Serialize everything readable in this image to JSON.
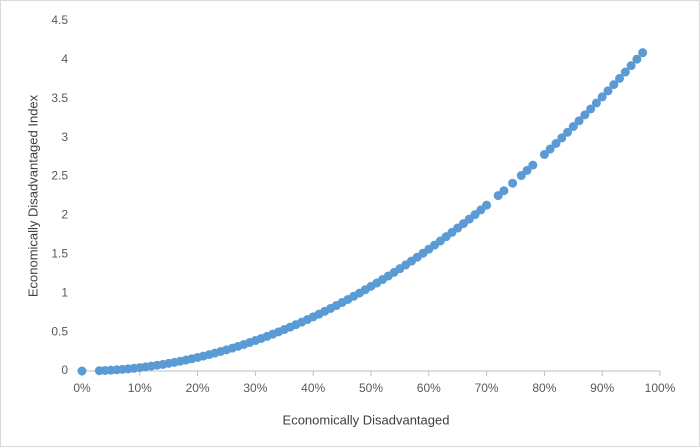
{
  "chart_data": {
    "type": "scatter",
    "xlabel": "Economically Disadvantaged",
    "ylabel": "Economically Disadvantaged Index",
    "color": "#5b9bd5",
    "x": [
      0,
      3,
      4,
      5,
      6,
      7,
      8,
      9,
      10,
      11,
      12,
      13,
      14,
      15,
      16,
      17,
      18,
      19,
      20,
      21,
      22,
      23,
      24,
      25,
      26,
      27,
      28,
      29,
      30,
      31,
      32,
      33,
      34,
      35,
      36,
      37,
      38,
      39,
      40,
      41,
      42,
      43,
      44,
      45,
      46,
      47,
      48,
      49,
      50,
      51,
      52,
      53,
      54,
      55,
      56,
      57,
      58,
      59,
      60,
      61,
      62,
      63,
      64,
      65,
      66,
      67,
      68,
      69,
      70,
      72,
      73,
      74.5,
      76,
      77,
      78,
      80,
      81,
      82,
      83,
      84,
      85,
      86,
      87,
      88,
      89,
      90,
      91,
      92,
      93,
      94,
      95,
      96,
      97
    ],
    "y": [
      0,
      0.004,
      0.007,
      0.011,
      0.016,
      0.021,
      0.028,
      0.035,
      0.044,
      0.053,
      0.063,
      0.074,
      0.085,
      0.098,
      0.111,
      0.126,
      0.141,
      0.157,
      0.174,
      0.192,
      0.211,
      0.23,
      0.251,
      0.272,
      0.294,
      0.317,
      0.341,
      0.366,
      0.392,
      0.418,
      0.445,
      0.474,
      0.503,
      0.533,
      0.564,
      0.596,
      0.628,
      0.662,
      0.696,
      0.731,
      0.767,
      0.804,
      0.842,
      0.881,
      0.92,
      0.961,
      1.002,
      1.044,
      1.088,
      1.131,
      1.176,
      1.222,
      1.268,
      1.316,
      1.364,
      1.413,
      1.463,
      1.514,
      1.566,
      1.619,
      1.672,
      1.727,
      1.782,
      1.838,
      1.895,
      1.953,
      2.011,
      2.071,
      2.132,
      2.255,
      2.318,
      2.414,
      2.513,
      2.579,
      2.647,
      2.784,
      2.854,
      2.925,
      2.997,
      3.069,
      3.143,
      3.217,
      3.293,
      3.369,
      3.446,
      3.524,
      3.602,
      3.682,
      3.762,
      3.844,
      3.926,
      4.009,
      4.093
    ],
    "xlim": [
      0,
      100
    ],
    "xticks": [
      {
        "value": 0,
        "label": "0%"
      },
      {
        "value": 10,
        "label": "10%"
      },
      {
        "value": 20,
        "label": "20%"
      },
      {
        "value": 30,
        "label": "30%"
      },
      {
        "value": 40,
        "label": "40%"
      },
      {
        "value": 50,
        "label": "50%"
      },
      {
        "value": 60,
        "label": "60%"
      },
      {
        "value": 70,
        "label": "70%"
      },
      {
        "value": 80,
        "label": "80%"
      },
      {
        "value": 90,
        "label": "90%"
      },
      {
        "value": 100,
        "label": "100%"
      }
    ],
    "ylim": [
      0,
      4.5
    ],
    "yticks": [
      0,
      0.5,
      1,
      1.5,
      2,
      2.5,
      3,
      3.5,
      4,
      4.5
    ],
    "grid": false
  }
}
